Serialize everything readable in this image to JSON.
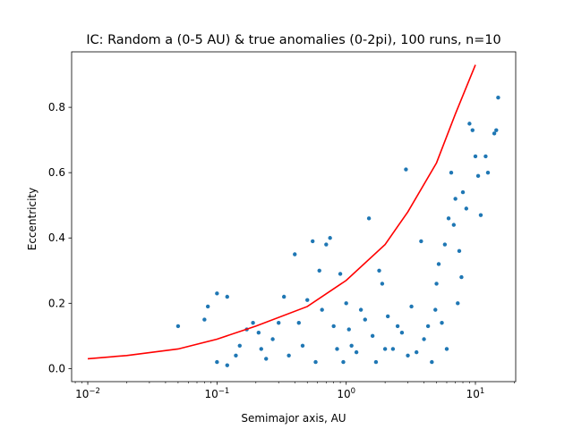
{
  "chart_data": {
    "type": "scatter",
    "title": "IC: Random a (0-5 AU) & true anomalies (0-2pi), 100 runs, n=10",
    "xlabel": "Semimajor axis, AU",
    "ylabel": "Eccentricity",
    "xscale": "log",
    "xlim": [
      0.0075,
      20.5
    ],
    "ylim": [
      -0.04,
      0.97
    ],
    "xticks": [
      {
        "value": 0.01,
        "base": "10",
        "exp": "−2"
      },
      {
        "value": 0.1,
        "base": "10",
        "exp": "−1"
      },
      {
        "value": 1,
        "base": "10",
        "exp": "0"
      },
      {
        "value": 10,
        "base": "10",
        "exp": "1"
      }
    ],
    "yticks": [
      {
        "value": 0.0,
        "label": "0.0"
      },
      {
        "value": 0.2,
        "label": "0.2"
      },
      {
        "value": 0.4,
        "label": "0.4"
      },
      {
        "value": 0.6,
        "label": "0.6"
      },
      {
        "value": 0.8,
        "label": "0.8"
      }
    ],
    "grid": false,
    "legend": "none",
    "series": [
      {
        "kind": "scatter",
        "color": "#1f77b4",
        "points": [
          [
            0.05,
            0.13
          ],
          [
            0.08,
            0.15
          ],
          [
            0.085,
            0.19
          ],
          [
            0.1,
            0.23
          ],
          [
            0.12,
            0.22
          ],
          [
            0.1,
            0.02
          ],
          [
            0.12,
            0.01
          ],
          [
            0.14,
            0.04
          ],
          [
            0.15,
            0.07
          ],
          [
            0.17,
            0.12
          ],
          [
            0.19,
            0.14
          ],
          [
            0.21,
            0.11
          ],
          [
            0.22,
            0.06
          ],
          [
            0.24,
            0.03
          ],
          [
            0.27,
            0.09
          ],
          [
            0.3,
            0.14
          ],
          [
            0.33,
            0.22
          ],
          [
            0.36,
            0.04
          ],
          [
            0.4,
            0.35
          ],
          [
            0.43,
            0.14
          ],
          [
            0.46,
            0.07
          ],
          [
            0.5,
            0.21
          ],
          [
            0.55,
            0.39
          ],
          [
            0.58,
            0.02
          ],
          [
            0.62,
            0.3
          ],
          [
            0.65,
            0.18
          ],
          [
            0.7,
            0.38
          ],
          [
            0.75,
            0.4
          ],
          [
            0.8,
            0.13
          ],
          [
            0.85,
            0.06
          ],
          [
            0.9,
            0.29
          ],
          [
            0.95,
            0.02
          ],
          [
            1.0,
            0.2
          ],
          [
            1.05,
            0.12
          ],
          [
            1.1,
            0.07
          ],
          [
            1.2,
            0.05
          ],
          [
            1.3,
            0.18
          ],
          [
            1.4,
            0.15
          ],
          [
            1.5,
            0.46
          ],
          [
            1.6,
            0.1
          ],
          [
            1.7,
            0.02
          ],
          [
            1.8,
            0.3
          ],
          [
            1.9,
            0.26
          ],
          [
            2.0,
            0.06
          ],
          [
            2.1,
            0.16
          ],
          [
            2.3,
            0.06
          ],
          [
            2.5,
            0.13
          ],
          [
            2.7,
            0.11
          ],
          [
            2.9,
            0.61
          ],
          [
            3.0,
            0.04
          ],
          [
            3.2,
            0.19
          ],
          [
            3.5,
            0.05
          ],
          [
            3.8,
            0.39
          ],
          [
            4.0,
            0.09
          ],
          [
            4.3,
            0.13
          ],
          [
            4.6,
            0.02
          ],
          [
            4.9,
            0.18
          ],
          [
            5.0,
            0.26
          ],
          [
            5.2,
            0.32
          ],
          [
            5.5,
            0.14
          ],
          [
            5.8,
            0.38
          ],
          [
            6.0,
            0.06
          ],
          [
            6.2,
            0.46
          ],
          [
            6.5,
            0.6
          ],
          [
            6.8,
            0.44
          ],
          [
            7.0,
            0.52
          ],
          [
            7.3,
            0.2
          ],
          [
            7.5,
            0.36
          ],
          [
            7.8,
            0.28
          ],
          [
            8.0,
            0.54
          ],
          [
            8.5,
            0.49
          ],
          [
            9.0,
            0.75
          ],
          [
            9.5,
            0.73
          ],
          [
            10.0,
            0.65
          ],
          [
            10.5,
            0.59
          ],
          [
            11.0,
            0.47
          ],
          [
            12.0,
            0.65
          ],
          [
            12.5,
            0.6
          ],
          [
            14.0,
            0.72
          ],
          [
            14.5,
            0.73
          ],
          [
            15.0,
            0.83
          ]
        ]
      },
      {
        "kind": "line",
        "color": "#ff0000",
        "points": [
          [
            0.01,
            0.03
          ],
          [
            0.02,
            0.04
          ],
          [
            0.05,
            0.06
          ],
          [
            0.1,
            0.09
          ],
          [
            0.2,
            0.13
          ],
          [
            0.5,
            0.19
          ],
          [
            1.0,
            0.27
          ],
          [
            2.0,
            0.38
          ],
          [
            3.0,
            0.48
          ],
          [
            5.0,
            0.63
          ],
          [
            7.0,
            0.78
          ],
          [
            10.0,
            0.93
          ]
        ]
      }
    ]
  }
}
